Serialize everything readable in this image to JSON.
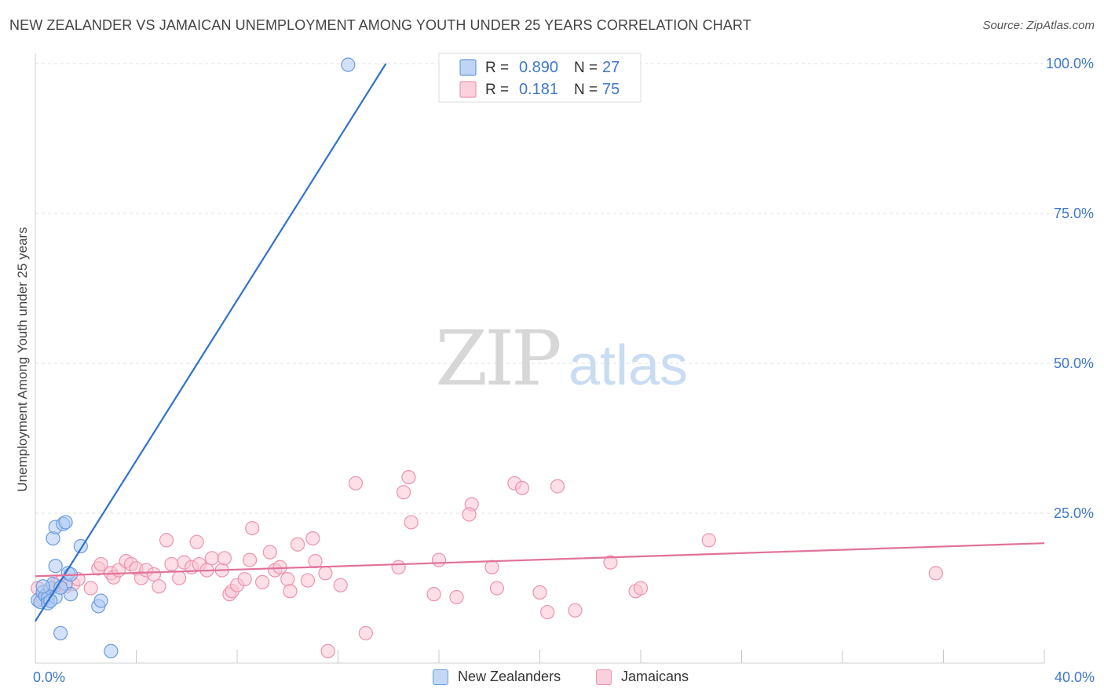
{
  "title": "NEW ZEALANDER VS JAMAICAN UNEMPLOYMENT AMONG YOUTH UNDER 25 YEARS CORRELATION CHART",
  "source": "Source: ZipAtlas.com",
  "watermark": {
    "zip": "ZIP",
    "atlas": "atlas"
  },
  "chart_data": {
    "type": "scatter",
    "xlabel": "",
    "ylabel": "Unemployment Among Youth under 25 years",
    "xlim": [
      0,
      40
    ],
    "ylim": [
      0,
      100
    ],
    "x_tick_labels": [
      {
        "value": 0,
        "label": "0.0%"
      },
      {
        "value": 40,
        "label": "40.0%"
      }
    ],
    "y_tick_labels": [
      {
        "value": 25,
        "label": "25.0%"
      },
      {
        "value": 50,
        "label": "50.0%"
      },
      {
        "value": 75,
        "label": "75.0%"
      },
      {
        "value": 100,
        "label": "100.0%"
      }
    ],
    "legend": {
      "position": "top-center",
      "entries": [
        {
          "r_label": "R =",
          "r_value": "0.890",
          "n_label": "N =",
          "n_value": "27"
        },
        {
          "r_label": "R =",
          "r_value": "0.181",
          "n_label": "N =",
          "n_value": "75"
        }
      ]
    },
    "series": [
      {
        "name": "New Zealanders",
        "color": "#6b9be0",
        "fill": "#aecbf3",
        "line_color": "#2f72cc",
        "trend": {
          "x0": 0,
          "y0": 7,
          "x1": 13.9,
          "y1": 100
        },
        "points": [
          [
            0.1,
            10.5
          ],
          [
            0.2,
            10.2
          ],
          [
            0.3,
            11.8
          ],
          [
            0.4,
            11.2
          ],
          [
            0.5,
            10.8
          ],
          [
            0.5,
            10.0
          ],
          [
            0.6,
            12.5
          ],
          [
            0.7,
            13.2
          ],
          [
            0.8,
            11.0
          ],
          [
            0.8,
            16.2
          ],
          [
            0.7,
            20.8
          ],
          [
            0.8,
            22.7
          ],
          [
            1.1,
            23.2
          ],
          [
            1.2,
            23.5
          ],
          [
            1.2,
            13.2
          ],
          [
            1.3,
            15.0
          ],
          [
            1.4,
            11.5
          ],
          [
            1.4,
            14.8
          ],
          [
            1.8,
            19.5
          ],
          [
            2.5,
            9.5
          ],
          [
            2.6,
            10.4
          ],
          [
            1.0,
            5.0
          ],
          [
            3.0,
            2.0
          ],
          [
            12.4,
            99.8
          ],
          [
            0.3,
            12.8
          ],
          [
            0.6,
            10.4
          ],
          [
            1.0,
            12.6
          ]
        ]
      },
      {
        "name": "Jamaicans",
        "color": "#ec93ae",
        "fill": "#f9c4d4",
        "line_color": "#e0719a",
        "trend": {
          "x0": 0,
          "y0": 14.5,
          "x1": 40,
          "y1": 20.0
        },
        "points": [
          [
            0.1,
            12.5
          ],
          [
            0.3,
            10.6
          ],
          [
            0.5,
            12.0
          ],
          [
            0.8,
            13.0
          ],
          [
            1.0,
            13.5
          ],
          [
            1.2,
            12.8
          ],
          [
            1.5,
            13.2
          ],
          [
            1.7,
            14.0
          ],
          [
            2.2,
            12.5
          ],
          [
            2.5,
            15.8
          ],
          [
            2.6,
            16.5
          ],
          [
            3.0,
            15.0
          ],
          [
            3.1,
            14.3
          ],
          [
            3.3,
            15.5
          ],
          [
            3.6,
            17.0
          ],
          [
            3.8,
            16.5
          ],
          [
            4.0,
            15.8
          ],
          [
            4.2,
            14.2
          ],
          [
            4.4,
            15.5
          ],
          [
            4.7,
            14.8
          ],
          [
            4.9,
            12.8
          ],
          [
            5.2,
            20.5
          ],
          [
            5.4,
            16.5
          ],
          [
            5.7,
            14.2
          ],
          [
            5.9,
            16.8
          ],
          [
            6.2,
            16.0
          ],
          [
            6.5,
            16.5
          ],
          [
            6.4,
            20.2
          ],
          [
            6.8,
            15.5
          ],
          [
            7.0,
            17.5
          ],
          [
            7.4,
            15.5
          ],
          [
            7.5,
            17.5
          ],
          [
            7.7,
            11.5
          ],
          [
            7.8,
            12.0
          ],
          [
            8.0,
            13.0
          ],
          [
            8.3,
            14.0
          ],
          [
            8.5,
            17.2
          ],
          [
            8.6,
            22.5
          ],
          [
            9.0,
            13.5
          ],
          [
            9.3,
            18.5
          ],
          [
            9.5,
            15.5
          ],
          [
            9.7,
            16.0
          ],
          [
            10.0,
            14.0
          ],
          [
            10.1,
            12.0
          ],
          [
            10.4,
            19.8
          ],
          [
            10.8,
            13.8
          ],
          [
            11.0,
            20.8
          ],
          [
            11.1,
            17.0
          ],
          [
            11.5,
            15.0
          ],
          [
            11.6,
            2.0
          ],
          [
            12.1,
            13.0
          ],
          [
            12.7,
            30.0
          ],
          [
            13.1,
            5.0
          ],
          [
            14.4,
            16.0
          ],
          [
            14.6,
            28.5
          ],
          [
            14.8,
            31.0
          ],
          [
            14.9,
            23.5
          ],
          [
            15.8,
            11.5
          ],
          [
            16.0,
            17.2
          ],
          [
            16.7,
            11.0
          ],
          [
            17.3,
            26.5
          ],
          [
            17.2,
            24.8
          ],
          [
            18.1,
            16.0
          ],
          [
            18.3,
            12.5
          ],
          [
            19.0,
            30.0
          ],
          [
            19.3,
            29.2
          ],
          [
            20.0,
            11.8
          ],
          [
            20.3,
            8.5
          ],
          [
            20.7,
            29.5
          ],
          [
            21.4,
            8.8
          ],
          [
            22.8,
            16.8
          ],
          [
            23.8,
            12.0
          ],
          [
            24.0,
            12.5
          ],
          [
            26.7,
            20.5
          ],
          [
            35.7,
            15.0
          ]
        ]
      }
    ]
  }
}
